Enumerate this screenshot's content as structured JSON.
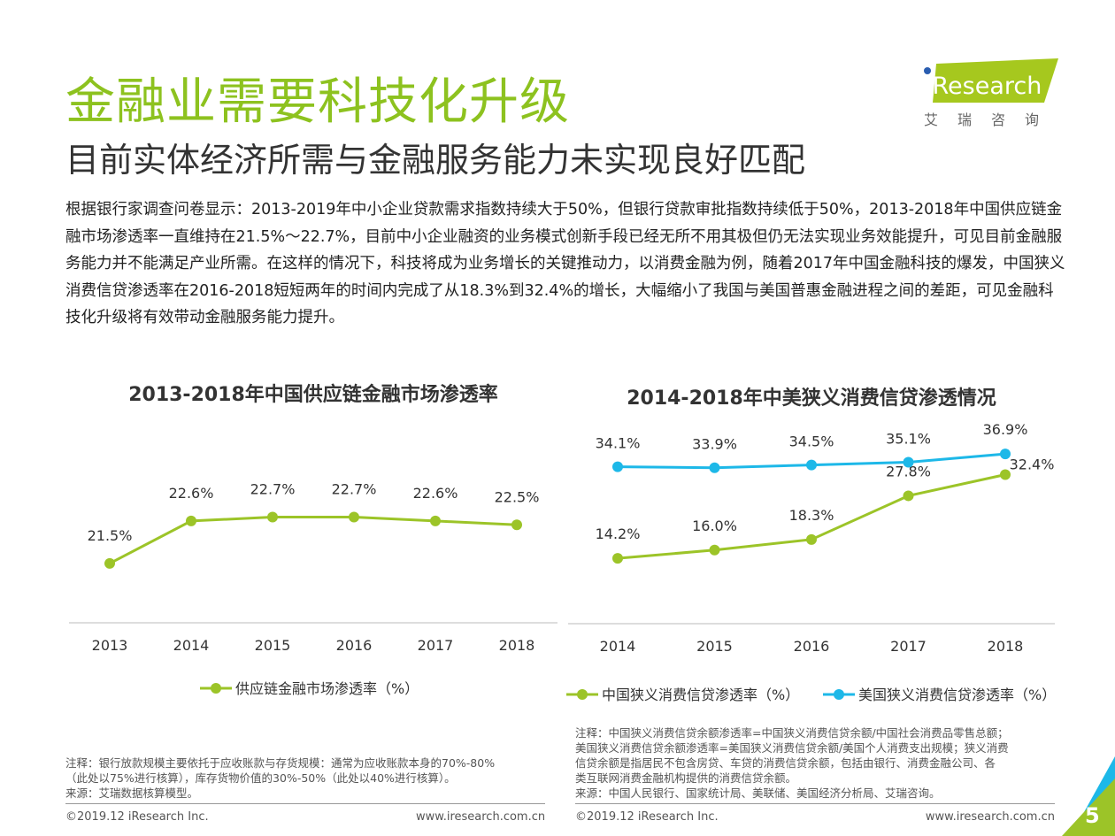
{
  "header": {
    "title": "金融业需要科技化升级",
    "subtitle": "目前实体经济所需与金融服务能力未实现良好匹配",
    "logo_text": "iResearch",
    "logo_cn": "艾瑞咨询"
  },
  "body_text": "根据银行家调查问卷显示：2013-2019年中小企业贷款需求指数持续大于50%，但银行贷款审批指数持续低于50%，2013-2018年中国供应链金融市场渗透率一直维持在21.5%～22.7%，目前中小企业融资的业务模式创新手段已经无所不用其极但仍无法实现业务效能提升，可见目前金融服务能力并不能满足产业所需。在这样的情况下，科技将成为业务增长的关键推动力，以消费金融为例，随着2017年中国金融科技的爆发，中国狭义消费信贷渗透率在2016-2018短短两年的时间内完成了从18.3%到32.4%的增长，大幅缩小了我国与美国普惠金融进程之间的差距，可见金融科技化升级将有效带动金融服务能力提升。",
  "colors": {
    "green": "#9cc428",
    "blue": "#1db8e8",
    "title_green": "#8dc21f"
  },
  "chart_data": [
    {
      "type": "line",
      "title": "2013-2018年中国供应链金融市场渗透率",
      "categories": [
        "2013",
        "2014",
        "2015",
        "2016",
        "2017",
        "2018"
      ],
      "series": [
        {
          "name": "供应链金融市场渗透率（%）",
          "values": [
            21.5,
            22.6,
            22.7,
            22.7,
            22.6,
            22.5
          ],
          "labels": [
            "21.5%",
            "22.6%",
            "22.7%",
            "22.7%",
            "22.6%",
            "22.5%"
          ],
          "color": "#9cc428"
        }
      ],
      "legend": "bottom",
      "grid": false
    },
    {
      "type": "line",
      "title": "2014-2018年中美狭义消费信贷渗透情况",
      "categories": [
        "2014",
        "2015",
        "2016",
        "2017",
        "2018"
      ],
      "series": [
        {
          "name": "中国狭义消费信贷渗透率（%）",
          "values": [
            14.2,
            16.0,
            18.3,
            27.8,
            32.4
          ],
          "labels": [
            "14.2%",
            "16.0%",
            "18.3%",
            "27.8%",
            "32.4%"
          ],
          "color": "#9cc428"
        },
        {
          "name": "美国狭义消费信贷渗透率（%）",
          "values": [
            34.1,
            33.9,
            34.5,
            35.1,
            36.9
          ],
          "labels": [
            "34.1%",
            "33.9%",
            "34.5%",
            "35.1%",
            "36.9%"
          ],
          "color": "#1db8e8"
        }
      ],
      "legend": "bottom",
      "grid": false
    }
  ],
  "notes": {
    "left": [
      "注释：银行放款规模主要依托于应收账款与存货规模：通常为应收账款本身的70%-80%",
      "（此处以75%进行核算），库存货物价值的30%-50%（此处以40%进行核算）。",
      "来源：艾瑞数据核算模型。"
    ],
    "right": [
      "注释：中国狭义消费信贷余额渗透率=中国狭义消费信贷余额/中国社会消费品零售总额；",
      "美国狭义消费信贷余额渗透率=美国狭义消费信贷余额/美国个人消费支出规模；狭义消费",
      "信贷余额是指居民不包含房贷、车贷的消费信贷余额，包括由银行、消费金融公司、各",
      "类互联网消费金融机构提供的消费信贷余额。",
      "来源：中国人民银行、国家统计局、美联储、美国经济分析局、艾瑞咨询。"
    ]
  },
  "footer": {
    "copyright": "©2019.12 iResearch Inc.",
    "url": "www.iresearch.com.cn",
    "page": "5"
  }
}
